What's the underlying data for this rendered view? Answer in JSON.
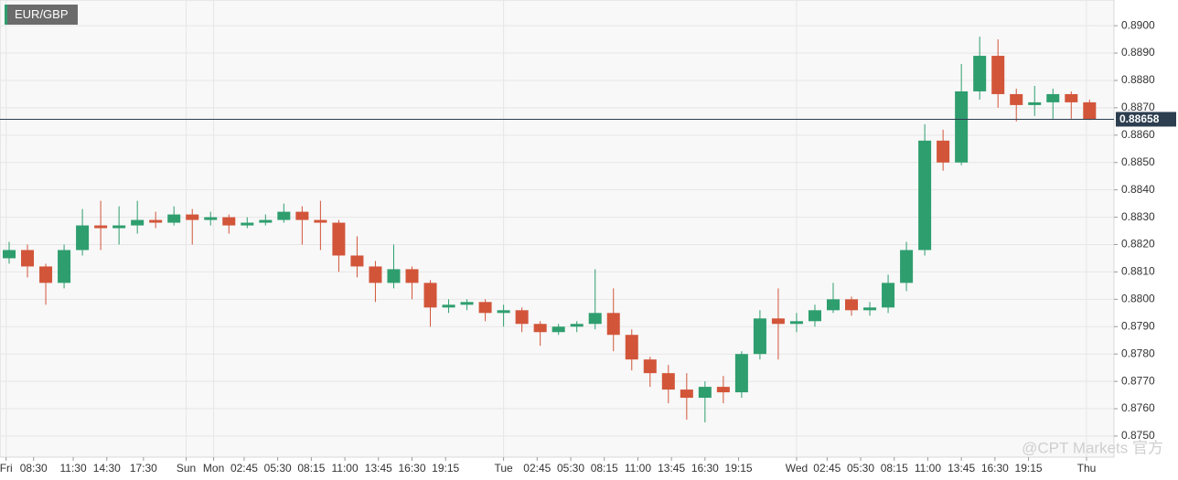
{
  "chart_data": {
    "type": "candlestick",
    "title": "EUR/GBP",
    "watermark": "@CPT Markets 官方",
    "up_color": "#2e9e6e",
    "down_color": "#d2553a",
    "last_price": 0.88658,
    "last_price_color": "#2c3e50",
    "grid": true,
    "xlim": [
      0,
      365
    ],
    "ylim": [
      0.87423,
      0.89094
    ],
    "yticks": [
      {
        "value": 0.875,
        "label": "0.8750"
      },
      {
        "value": 0.876,
        "label": "0.8760"
      },
      {
        "value": 0.877,
        "label": "0.8770"
      },
      {
        "value": 0.878,
        "label": "0.8780"
      },
      {
        "value": 0.879,
        "label": "0.8790"
      },
      {
        "value": 0.88,
        "label": "0.8800"
      },
      {
        "value": 0.881,
        "label": "0.8810"
      },
      {
        "value": 0.882,
        "label": "0.8820"
      },
      {
        "value": 0.883,
        "label": "0.8830"
      },
      {
        "value": 0.884,
        "label": "0.8840"
      },
      {
        "value": 0.885,
        "label": "0.8850"
      },
      {
        "value": 0.886,
        "label": "0.8860"
      },
      {
        "value": 0.887,
        "label": "0.8870"
      },
      {
        "value": 0.888,
        "label": "0.8880"
      },
      {
        "value": 0.889,
        "label": "0.8890"
      },
      {
        "value": 0.89,
        "label": "0.8900"
      }
    ],
    "xticks": [
      {
        "value": 2,
        "label": "Fri"
      },
      {
        "value": 11,
        "label": "08:30"
      },
      {
        "value": 24,
        "label": "11:30"
      },
      {
        "value": 35,
        "label": "14:30"
      },
      {
        "value": 47,
        "label": "17:30"
      },
      {
        "value": 61,
        "label": "Sun"
      },
      {
        "value": 70,
        "label": "Mon"
      },
      {
        "value": 80,
        "label": "02:45"
      },
      {
        "value": 91,
        "label": "05:30"
      },
      {
        "value": 102,
        "label": "08:15"
      },
      {
        "value": 113,
        "label": "11:00"
      },
      {
        "value": 124,
        "label": "13:45"
      },
      {
        "value": 135,
        "label": "16:30"
      },
      {
        "value": 146,
        "label": "19:15"
      },
      {
        "value": 165,
        "label": "Tue"
      },
      {
        "value": 176,
        "label": "02:45"
      },
      {
        "value": 187,
        "label": "05:30"
      },
      {
        "value": 198,
        "label": "08:15"
      },
      {
        "value": 209,
        "label": "11:00"
      },
      {
        "value": 220,
        "label": "13:45"
      },
      {
        "value": 231,
        "label": "16:30"
      },
      {
        "value": 242,
        "label": "19:15"
      },
      {
        "value": 261,
        "label": "Wed"
      },
      {
        "value": 271,
        "label": "02:45"
      },
      {
        "value": 282,
        "label": "05:30"
      },
      {
        "value": 293,
        "label": "08:15"
      },
      {
        "value": 304,
        "label": "11:00"
      },
      {
        "value": 315,
        "label": "13:45"
      },
      {
        "value": 326,
        "label": "16:30"
      },
      {
        "value": 337,
        "label": "19:15"
      },
      {
        "value": 356,
        "label": "Thu"
      }
    ],
    "x": [
      3,
      9,
      15,
      21,
      27,
      33,
      39,
      45,
      51,
      57,
      63,
      69,
      75,
      81,
      87,
      93,
      99,
      105,
      111,
      117,
      123,
      129,
      135,
      141,
      147,
      153,
      159,
      165,
      171,
      177,
      183,
      189,
      195,
      201,
      207,
      213,
      219,
      225,
      231,
      237,
      243,
      249,
      255,
      261,
      267,
      273,
      279,
      285,
      291,
      297,
      303,
      309,
      315,
      321,
      327,
      333,
      339,
      345,
      351,
      357
    ],
    "open": [
      0.8815,
      0.8818,
      0.8812,
      0.8806,
      0.8818,
      0.8827,
      0.8826,
      0.8827,
      0.8829,
      0.8828,
      0.8831,
      0.8829,
      0.883,
      0.8827,
      0.8828,
      0.8829,
      0.8832,
      0.8829,
      0.8828,
      0.8816,
      0.8812,
      0.8806,
      0.8811,
      0.8806,
      0.8797,
      0.8798,
      0.8799,
      0.8795,
      0.8796,
      0.8791,
      0.8788,
      0.879,
      0.8791,
      0.8795,
      0.8787,
      0.8778,
      0.8773,
      0.8767,
      0.8764,
      0.8768,
      0.8766,
      0.878,
      0.8793,
      0.8791,
      0.8792,
      0.8796,
      0.88,
      0.8796,
      0.8797,
      0.8806,
      0.8818,
      0.8858,
      0.885,
      0.8876,
      0.8889,
      0.8875,
      0.8871,
      0.8872,
      0.8875,
      0.8872
    ],
    "high": [
      0.8821,
      0.882,
      0.8813,
      0.882,
      0.8833,
      0.8836,
      0.8834,
      0.8836,
      0.8832,
      0.8834,
      0.8833,
      0.8832,
      0.8831,
      0.883,
      0.8831,
      0.8835,
      0.8834,
      0.8836,
      0.8829,
      0.8823,
      0.8814,
      0.882,
      0.8812,
      0.8807,
      0.88,
      0.88,
      0.88,
      0.8798,
      0.8797,
      0.8792,
      0.8791,
      0.8792,
      0.8811,
      0.8804,
      0.8789,
      0.8779,
      0.8776,
      0.8773,
      0.877,
      0.8772,
      0.8781,
      0.8796,
      0.8804,
      0.8795,
      0.8798,
      0.8806,
      0.8801,
      0.8799,
      0.8809,
      0.8821,
      0.8864,
      0.8862,
      0.8886,
      0.8896,
      0.8895,
      0.8877,
      0.8878,
      0.8877,
      0.8876,
      0.8873
    ],
    "low": [
      0.8813,
      0.8808,
      0.8798,
      0.8804,
      0.8816,
      0.8818,
      0.882,
      0.8824,
      0.8826,
      0.8827,
      0.882,
      0.8827,
      0.8824,
      0.8826,
      0.8827,
      0.8828,
      0.882,
      0.8818,
      0.881,
      0.8808,
      0.8799,
      0.8804,
      0.88,
      0.879,
      0.8795,
      0.8796,
      0.8792,
      0.879,
      0.8788,
      0.8783,
      0.8787,
      0.8788,
      0.8789,
      0.8781,
      0.8774,
      0.8768,
      0.8762,
      0.8756,
      0.8755,
      0.8762,
      0.8764,
      0.8778,
      0.8778,
      0.8788,
      0.879,
      0.8795,
      0.8794,
      0.8794,
      0.8795,
      0.8803,
      0.8816,
      0.8847,
      0.8849,
      0.8873,
      0.887,
      0.8865,
      0.8867,
      0.8866,
      0.8866,
      0.88655
    ],
    "close": [
      0.8818,
      0.8812,
      0.8806,
      0.8818,
      0.8827,
      0.8826,
      0.8827,
      0.8829,
      0.8828,
      0.8831,
      0.8829,
      0.883,
      0.8827,
      0.8828,
      0.8829,
      0.8832,
      0.8829,
      0.8828,
      0.8816,
      0.8812,
      0.8806,
      0.8811,
      0.8806,
      0.8797,
      0.8798,
      0.8799,
      0.8795,
      0.8796,
      0.8791,
      0.8788,
      0.879,
      0.8791,
      0.8795,
      0.8787,
      0.8778,
      0.8773,
      0.8767,
      0.8764,
      0.8768,
      0.8766,
      0.878,
      0.8793,
      0.8791,
      0.8792,
      0.8796,
      0.88,
      0.8796,
      0.8797,
      0.8806,
      0.8818,
      0.8858,
      0.885,
      0.8876,
      0.8889,
      0.8875,
      0.8871,
      0.8872,
      0.8875,
      0.8872,
      0.88658
    ]
  }
}
